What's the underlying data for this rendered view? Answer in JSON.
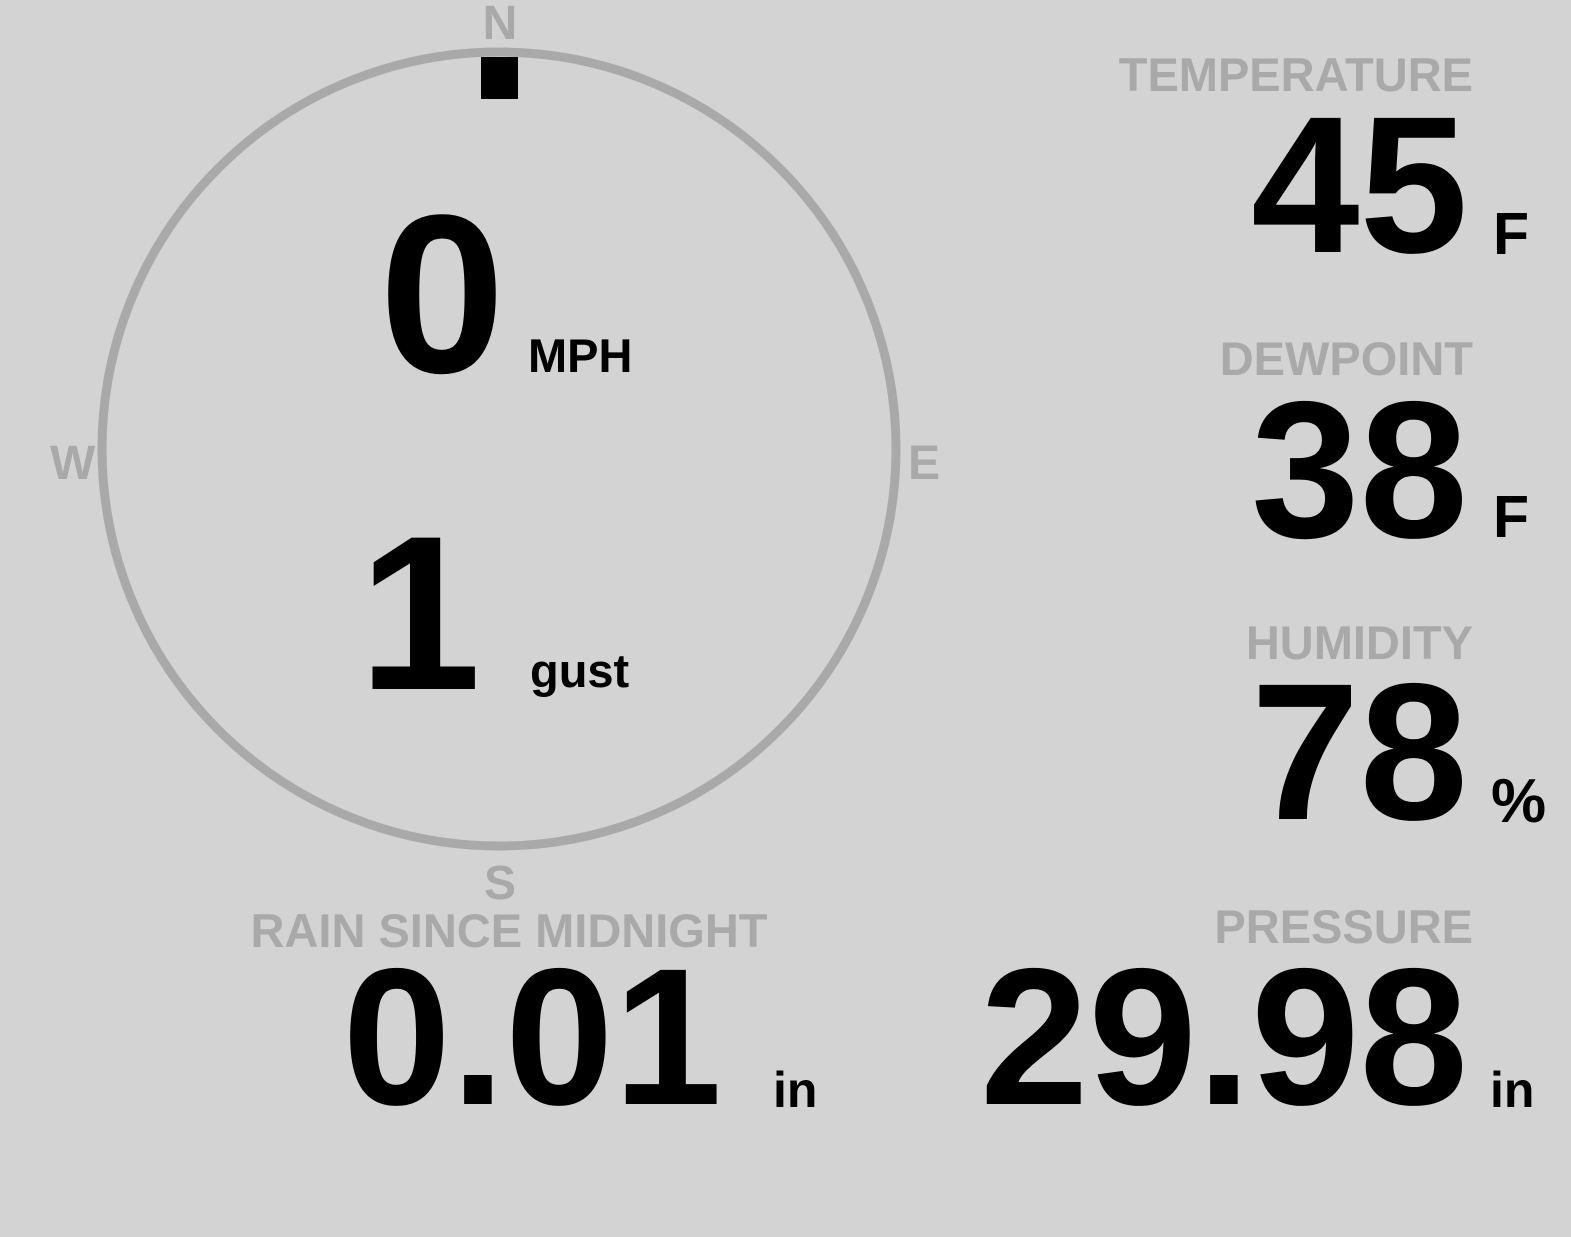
{
  "colors": {
    "background": "#d3d3d3",
    "label": "#a9a9a9",
    "value": "#000000"
  },
  "compass": {
    "north": "N",
    "east": "E",
    "south": "S",
    "west": "W",
    "direction_degrees": 0,
    "speed": "0",
    "speed_unit": "MPH",
    "gust": "1",
    "gust_unit": "gust"
  },
  "temperature": {
    "label": "TEMPERATURE",
    "value": "45",
    "unit": "F"
  },
  "dewpoint": {
    "label": "DEWPOINT",
    "value": "38",
    "unit": "F"
  },
  "humidity": {
    "label": "HUMIDITY",
    "value": "78",
    "unit": "%"
  },
  "pressure": {
    "label": "PRESSURE",
    "value": "29.98",
    "unit": "in"
  },
  "rain": {
    "label": "RAIN SINCE MIDNIGHT",
    "value": "0.01",
    "unit": "in"
  }
}
